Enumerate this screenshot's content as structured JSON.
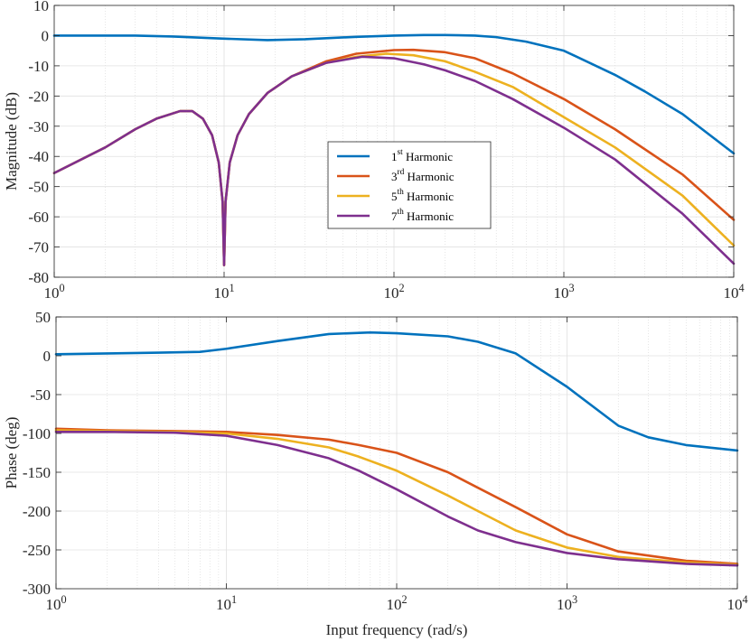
{
  "chart_data": [
    {
      "type": "line",
      "id": "magnitude",
      "title": "",
      "xlabel": "",
      "ylabel": "Magnitude (dB)",
      "xscale": "log",
      "xlim": [
        1,
        10000
      ],
      "ylim": [
        -80,
        10
      ],
      "xticks": [
        1,
        10,
        100,
        1000,
        10000
      ],
      "xtick_labels": [
        {
          "base": "10",
          "exp": "0"
        },
        {
          "base": "10",
          "exp": "1"
        },
        {
          "base": "10",
          "exp": "2"
        },
        {
          "base": "10",
          "exp": "3"
        },
        {
          "base": "10",
          "exp": "4"
        }
      ],
      "yticks": [
        10,
        0,
        -10,
        -20,
        -30,
        -40,
        -50,
        -60,
        -70,
        -80
      ],
      "grid": true,
      "legend": {
        "placement": "center",
        "entries": [
          {
            "num": "1",
            "sup": "st",
            "text": " Harmonic",
            "color": "#0072BD"
          },
          {
            "num": "3",
            "sup": "rd",
            "text": " Harmonic",
            "color": "#D95319"
          },
          {
            "num": "5",
            "sup": "th",
            "text": " Harmonic",
            "color": "#EDB120"
          },
          {
            "num": "7",
            "sup": "th",
            "text": " Harmonic",
            "color": "#7E2F8E"
          }
        ]
      },
      "series": [
        {
          "color": "#0072BD",
          "points": [
            [
              1,
              0
            ],
            [
              3,
              0
            ],
            [
              5,
              -0.3
            ],
            [
              10,
              -1
            ],
            [
              18,
              -1.5
            ],
            [
              30,
              -1.2
            ],
            [
              60,
              -0.4
            ],
            [
              100,
              0
            ],
            [
              150,
              0.2
            ],
            [
              200,
              0.2
            ],
            [
              300,
              0
            ],
            [
              400,
              -0.5
            ],
            [
              600,
              -2
            ],
            [
              1000,
              -5
            ],
            [
              2000,
              -13
            ],
            [
              3000,
              -18.5
            ],
            [
              5000,
              -26
            ],
            [
              10000,
              -39
            ]
          ]
        },
        {
          "color": "#D95319",
          "points": [
            [
              1,
              -45.5
            ],
            [
              2,
              -37
            ],
            [
              3,
              -31
            ],
            [
              4,
              -27.5
            ],
            [
              5.5,
              -25
            ],
            [
              6.5,
              -25
            ],
            [
              7.5,
              -27.5
            ],
            [
              8.5,
              -33
            ],
            [
              9.3,
              -42
            ],
            [
              9.8,
              -55
            ],
            [
              10,
              -76
            ],
            [
              10.2,
              -55
            ],
            [
              10.8,
              -42
            ],
            [
              12,
              -33
            ],
            [
              14,
              -26
            ],
            [
              18,
              -19
            ],
            [
              25,
              -13.5
            ],
            [
              40,
              -8.5
            ],
            [
              60,
              -6
            ],
            [
              100,
              -4.8
            ],
            [
              130,
              -4.7
            ],
            [
              200,
              -5.5
            ],
            [
              300,
              -7.5
            ],
            [
              500,
              -12.5
            ],
            [
              1000,
              -21
            ],
            [
              2000,
              -31
            ],
            [
              5000,
              -46
            ],
            [
              10000,
              -61
            ]
          ]
        },
        {
          "color": "#EDB120",
          "points": [
            [
              1,
              -45.5
            ],
            [
              2,
              -37
            ],
            [
              3,
              -31
            ],
            [
              4,
              -27.5
            ],
            [
              5.5,
              -25
            ],
            [
              6.5,
              -25
            ],
            [
              7.5,
              -27.5
            ],
            [
              8.5,
              -33
            ],
            [
              9.3,
              -42
            ],
            [
              9.8,
              -55
            ],
            [
              10,
              -76
            ],
            [
              10.2,
              -55
            ],
            [
              10.8,
              -42
            ],
            [
              12,
              -33
            ],
            [
              14,
              -26
            ],
            [
              18,
              -19
            ],
            [
              25,
              -13.5
            ],
            [
              40,
              -9
            ],
            [
              60,
              -7
            ],
            [
              90,
              -6
            ],
            [
              130,
              -6.5
            ],
            [
              200,
              -8.5
            ],
            [
              300,
              -12
            ],
            [
              500,
              -17
            ],
            [
              1000,
              -27
            ],
            [
              2000,
              -37
            ],
            [
              5000,
              -53
            ],
            [
              10000,
              -69.5
            ]
          ]
        },
        {
          "color": "#7E2F8E",
          "points": [
            [
              1,
              -45.5
            ],
            [
              2,
              -37
            ],
            [
              3,
              -31
            ],
            [
              4,
              -27.5
            ],
            [
              5.5,
              -25
            ],
            [
              6.5,
              -25
            ],
            [
              7.5,
              -27.5
            ],
            [
              8.5,
              -33
            ],
            [
              9.3,
              -42
            ],
            [
              9.8,
              -55
            ],
            [
              10,
              -76
            ],
            [
              10.2,
              -55
            ],
            [
              10.8,
              -42
            ],
            [
              12,
              -33
            ],
            [
              14,
              -26
            ],
            [
              18,
              -19
            ],
            [
              25,
              -13.5
            ],
            [
              40,
              -9
            ],
            [
              65,
              -7
            ],
            [
              100,
              -7.5
            ],
            [
              150,
              -9.5
            ],
            [
              200,
              -11.5
            ],
            [
              300,
              -15
            ],
            [
              500,
              -21
            ],
            [
              1000,
              -30.5
            ],
            [
              2000,
              -41
            ],
            [
              5000,
              -59
            ],
            [
              10000,
              -75.5
            ]
          ]
        }
      ]
    },
    {
      "type": "line",
      "id": "phase",
      "title": "",
      "xlabel": "Input frequency (rad/s)",
      "ylabel": "Phase (deg)",
      "xscale": "log",
      "xlim": [
        1,
        10000
      ],
      "ylim": [
        -300,
        50
      ],
      "xticks": [
        1,
        10,
        100,
        1000,
        10000
      ],
      "xtick_labels": [
        {
          "base": "10",
          "exp": "0"
        },
        {
          "base": "10",
          "exp": "1"
        },
        {
          "base": "10",
          "exp": "2"
        },
        {
          "base": "10",
          "exp": "3"
        },
        {
          "base": "10",
          "exp": "4"
        }
      ],
      "yticks": [
        50,
        0,
        -50,
        -100,
        -150,
        -200,
        -250,
        -300
      ],
      "grid": true,
      "series": [
        {
          "color": "#0072BD",
          "points": [
            [
              1,
              2
            ],
            [
              2,
              3
            ],
            [
              4,
              4
            ],
            [
              7,
              5
            ],
            [
              10,
              9
            ],
            [
              20,
              19
            ],
            [
              40,
              28
            ],
            [
              70,
              30
            ],
            [
              100,
              29
            ],
            [
              200,
              25
            ],
            [
              300,
              18
            ],
            [
              500,
              3
            ],
            [
              1000,
              -40
            ],
            [
              2000,
              -90
            ],
            [
              3000,
              -105
            ],
            [
              5000,
              -115
            ],
            [
              10000,
              -122
            ]
          ]
        },
        {
          "color": "#D95319",
          "points": [
            [
              1,
              -94
            ],
            [
              2,
              -96
            ],
            [
              5,
              -97
            ],
            [
              10,
              -98
            ],
            [
              20,
              -102
            ],
            [
              40,
              -108
            ],
            [
              60,
              -115
            ],
            [
              100,
              -125
            ],
            [
              200,
              -150
            ],
            [
              300,
              -170
            ],
            [
              500,
              -195
            ],
            [
              1000,
              -230
            ],
            [
              2000,
              -252
            ],
            [
              5000,
              -264
            ],
            [
              10000,
              -268
            ]
          ]
        },
        {
          "color": "#EDB120",
          "points": [
            [
              1,
              -96
            ],
            [
              2,
              -97
            ],
            [
              5,
              -98
            ],
            [
              10,
              -100
            ],
            [
              20,
              -107
            ],
            [
              40,
              -118
            ],
            [
              60,
              -130
            ],
            [
              100,
              -148
            ],
            [
              200,
              -180
            ],
            [
              300,
              -200
            ],
            [
              500,
              -225
            ],
            [
              1000,
              -247
            ],
            [
              2000,
              -259
            ],
            [
              5000,
              -266
            ],
            [
              10000,
              -269
            ]
          ]
        },
        {
          "color": "#7E2F8E",
          "points": [
            [
              1,
              -98
            ],
            [
              2,
              -98
            ],
            [
              5,
              -99
            ],
            [
              10,
              -103
            ],
            [
              20,
              -115
            ],
            [
              40,
              -132
            ],
            [
              60,
              -148
            ],
            [
              100,
              -172
            ],
            [
              200,
              -207
            ],
            [
              300,
              -225
            ],
            [
              500,
              -240
            ],
            [
              1000,
              -254
            ],
            [
              2000,
              -262
            ],
            [
              5000,
              -268
            ],
            [
              10000,
              -270
            ]
          ]
        }
      ]
    }
  ]
}
